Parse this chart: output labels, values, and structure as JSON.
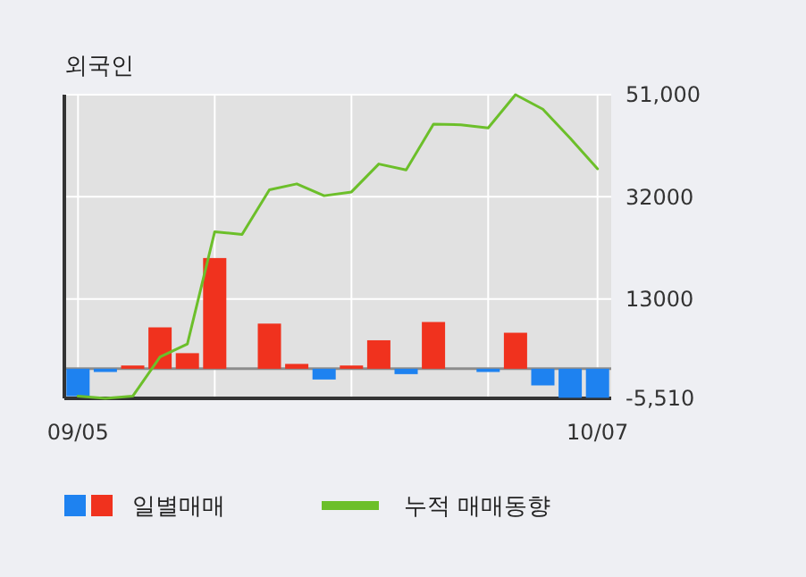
{
  "chart_data": {
    "type": "bar",
    "title": "외국인",
    "categories": [
      "09/05",
      null,
      null,
      null,
      null,
      null,
      null,
      null,
      null,
      null,
      null,
      null,
      null,
      null,
      null,
      null,
      null,
      null,
      null,
      "10/07"
    ],
    "series": [
      {
        "name": "일별매매",
        "colors": [
          "#1e82f0",
          "#1e82f0",
          "#f0321e",
          "#f0321e",
          "#f0321e",
          "#f0321e",
          "#f0321e",
          "#f0321e",
          "#f0321e",
          "#1e82f0",
          "#f0321e",
          "#f0321e",
          "#1e82f0",
          "#f0321e",
          "#f0321e",
          "#1e82f0",
          "#f0321e",
          "#1e82f0",
          "#1e82f0",
          "#1e82f0"
        ],
        "values": [
          -5100,
          -600,
          600,
          7700,
          2900,
          20600,
          0,
          8400,
          900,
          -2000,
          600,
          5300,
          -1000,
          8700,
          0,
          -600,
          6700,
          -3100,
          -5400,
          -5400
        ]
      },
      {
        "name": "누적 매매동향",
        "type": "line",
        "color": "#6cbf2a",
        "values": [
          -5100,
          -5500,
          -5100,
          2200,
          4600,
          25500,
          25000,
          33300,
          34400,
          32200,
          32900,
          38100,
          37000,
          45500,
          45400,
          44800,
          51000,
          48300,
          42900,
          37200
        ]
      }
    ],
    "ylim": [
      -5510,
      51000
    ],
    "yticks": [
      {
        "value": 51000,
        "label": "51,000"
      },
      32000,
      13000,
      {
        "value": -5510,
        "label": "-5,510"
      }
    ],
    "grid": true,
    "legend": "bottom"
  }
}
